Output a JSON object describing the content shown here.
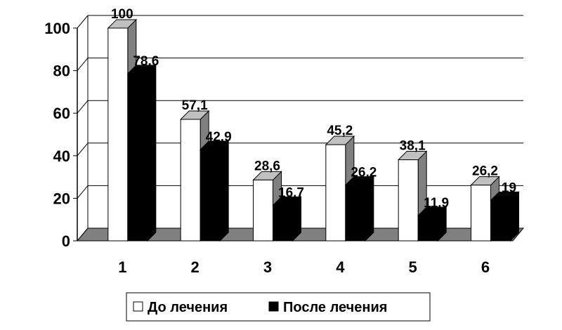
{
  "chart_data": {
    "type": "bar",
    "categories": [
      "1",
      "2",
      "3",
      "4",
      "5",
      "6"
    ],
    "series": [
      {
        "name": "До лечения",
        "values": [
          100,
          57.1,
          28.6,
          45.2,
          38.1,
          26.2
        ],
        "labels": [
          "100",
          "57,1",
          "28,6",
          "45,2",
          "38,1",
          "26,2"
        ],
        "color": "#ffffff"
      },
      {
        "name": "После лечения",
        "values": [
          78.6,
          42.9,
          16.7,
          26.2,
          11.9,
          19
        ],
        "labels": [
          "78,6",
          "42,9",
          "16,7",
          "26,2",
          "11,9",
          "19"
        ],
        "color": "#000000"
      }
    ],
    "y_ticks": [
      "0",
      "20",
      "40",
      "60",
      "80",
      "100"
    ],
    "ylim": [
      0,
      100
    ],
    "grid": true,
    "three_d": true,
    "legend_position": "bottom-center",
    "colors": {
      "floor": "#808080",
      "bar_top": "#c0c0c0",
      "bar_side": "#808080",
      "gridline": "#000000"
    }
  }
}
